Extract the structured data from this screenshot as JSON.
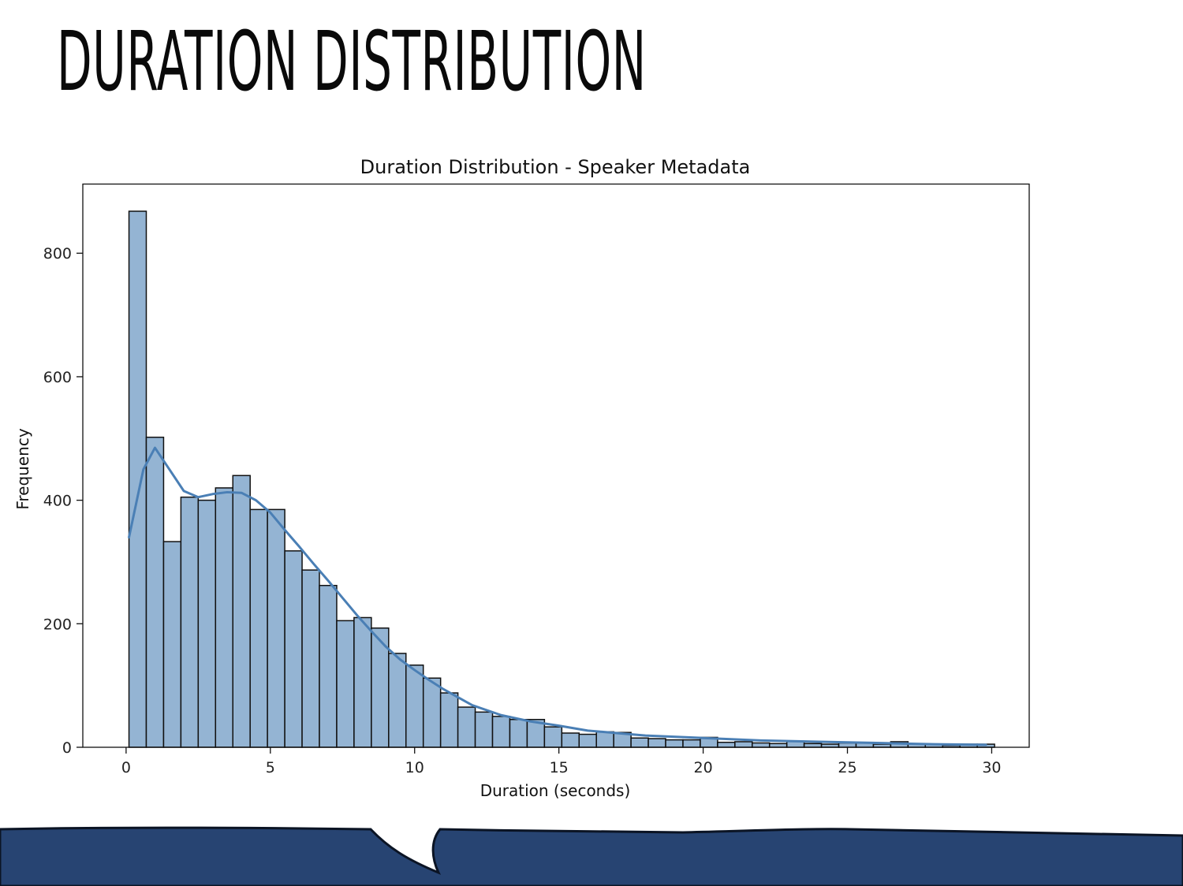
{
  "slide": {
    "title": "DURATION DISTRIBUTION"
  },
  "colors": {
    "bar_fill": "#94b4d3",
    "bar_edge": "#111111",
    "kde_line": "#4a7fb5",
    "banner": "#274472"
  },
  "chart_data": {
    "type": "bar",
    "title": "Duration Distribution - Speaker Metadata",
    "xlabel": "Duration (seconds)",
    "ylabel": "Frequency",
    "xlim": [
      -1.5,
      31.3
    ],
    "ylim": [
      0,
      912
    ],
    "xticks": [
      0,
      5,
      10,
      15,
      20,
      25,
      30
    ],
    "yticks": [
      0,
      200,
      400,
      600,
      800
    ],
    "bin_start": 0.1,
    "bin_width": 0.6,
    "values": [
      868,
      502,
      333,
      405,
      400,
      420,
      440,
      385,
      385,
      318,
      287,
      262,
      205,
      210,
      193,
      152,
      133,
      112,
      88,
      65,
      57,
      50,
      45,
      45,
      33,
      23,
      21,
      25,
      24,
      15,
      14,
      12,
      12,
      16,
      8,
      9,
      7,
      6,
      10,
      6,
      5,
      7,
      8,
      5,
      9,
      6,
      5,
      3,
      5,
      5
    ],
    "kde": {
      "x": [
        0.1,
        0.6,
        1.0,
        1.5,
        2.0,
        2.5,
        3.0,
        3.5,
        4.0,
        4.5,
        5.0,
        5.5,
        6.0,
        6.5,
        7.0,
        7.5,
        8.0,
        8.5,
        9.0,
        9.5,
        10.0,
        10.5,
        11.0,
        12.0,
        13.0,
        14.0,
        15.0,
        16.0,
        17.0,
        18.0,
        20.0,
        22.0,
        24.0,
        26.0,
        28.0,
        29.8
      ],
      "y": [
        340,
        450,
        485,
        450,
        415,
        405,
        410,
        413,
        412,
        400,
        380,
        352,
        325,
        297,
        270,
        242,
        214,
        188,
        163,
        142,
        125,
        109,
        94,
        68,
        52,
        42,
        35,
        27,
        23,
        19,
        15,
        11,
        9,
        7,
        5,
        4
      ]
    }
  }
}
